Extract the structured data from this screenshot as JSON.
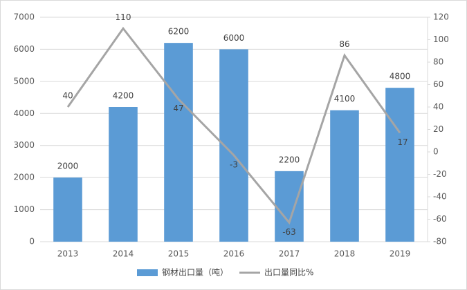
{
  "chart_data": {
    "type": "combo",
    "categories": [
      "2013",
      "2014",
      "2015",
      "2016",
      "2017",
      "2018",
      "2019"
    ],
    "series": [
      {
        "name": "钢材出口量（吨）",
        "type": "bar",
        "color": "#5b9bd5",
        "values": [
          2000,
          4200,
          6200,
          6000,
          2200,
          4100,
          4800
        ]
      },
      {
        "name": "出口量同比%",
        "type": "line",
        "axis": "y2",
        "color": "#a5a5a5",
        "values": [
          40,
          110,
          47,
          -3,
          -63,
          86,
          17
        ]
      }
    ],
    "ylim": [
      0,
      7000
    ],
    "yticks": [
      0,
      1000,
      2000,
      3000,
      4000,
      5000,
      6000,
      7000
    ],
    "y2lim": [
      -80,
      120
    ],
    "y2ticks": [
      -80,
      -60,
      -40,
      -20,
      0,
      20,
      40,
      60,
      80,
      100,
      120
    ],
    "grid": true,
    "legend": "bottom"
  }
}
